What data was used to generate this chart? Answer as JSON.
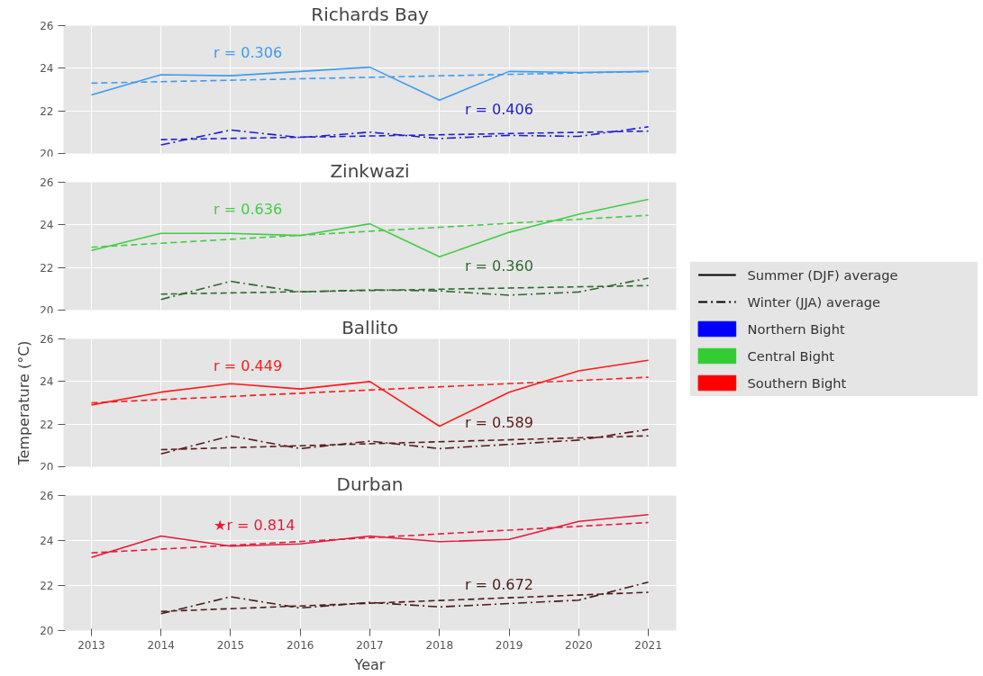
{
  "chart_data": [
    {
      "type": "line",
      "title": "Richards Bay",
      "ylim": [
        20,
        26
      ],
      "yticks": [
        20,
        22,
        24,
        26
      ],
      "xlim": [
        2012.6,
        2021.4
      ],
      "xticks": [
        2013,
        2014,
        2015,
        2016,
        2017,
        2018,
        2019,
        2020,
        2021
      ],
      "tick_labels": "y",
      "grid": true,
      "annotations": [
        "r = 0.306",
        "r = 0.406"
      ],
      "series": [
        {
          "color": "#3f9bf0",
          "line_style": "solid",
          "x": [
            2013,
            2014,
            2015,
            2016,
            2017,
            2018,
            2019,
            2020,
            2021
          ],
          "values": [
            22.75,
            23.7,
            23.65,
            23.85,
            24.05,
            22.5,
            23.85,
            23.8,
            23.85
          ]
        },
        {
          "color": "#3f9bf0",
          "line_style": "dashed",
          "x": [
            2013,
            2021
          ],
          "values": [
            23.3,
            23.85
          ]
        },
        {
          "color": "#2020d0",
          "line_style": "dashdot",
          "x": [
            2014,
            2015,
            2016,
            2017,
            2018,
            2019,
            2020,
            2021
          ],
          "values": [
            20.4,
            21.1,
            20.75,
            21.0,
            20.7,
            20.85,
            20.8,
            21.25
          ]
        },
        {
          "color": "#2020d0",
          "line_style": "dashed",
          "x": [
            2014,
            2021
          ],
          "values": [
            20.65,
            21.05
          ]
        }
      ]
    },
    {
      "type": "line",
      "title": "Zinkwazi",
      "ylim": [
        20,
        26
      ],
      "yticks": [
        20,
        22,
        24,
        26
      ],
      "xlim": [
        2012.6,
        2021.4
      ],
      "xticks": [
        2013,
        2014,
        2015,
        2016,
        2017,
        2018,
        2019,
        2020,
        2021
      ],
      "tick_labels": "y",
      "grid": true,
      "annotations": [
        "r = 0.636",
        "r = 0.360"
      ],
      "series": [
        {
          "color": "#44cc44",
          "line_style": "solid",
          "x": [
            2013,
            2014,
            2015,
            2016,
            2017,
            2018,
            2019,
            2020,
            2021
          ],
          "values": [
            22.8,
            23.6,
            23.6,
            23.5,
            24.05,
            22.5,
            23.65,
            24.5,
            25.2
          ]
        },
        {
          "color": "#44cc44",
          "line_style": "dashed",
          "x": [
            2013,
            2021
          ],
          "values": [
            22.95,
            24.45
          ]
        },
        {
          "color": "#2e6b2e",
          "line_style": "dashdot",
          "x": [
            2014,
            2015,
            2016,
            2017,
            2018,
            2019,
            2020,
            2021
          ],
          "values": [
            20.5,
            21.35,
            20.85,
            20.95,
            20.9,
            20.7,
            20.85,
            21.5
          ]
        },
        {
          "color": "#2e6b2e",
          "line_style": "dashed",
          "x": [
            2014,
            2021
          ],
          "values": [
            20.75,
            21.15
          ]
        }
      ]
    },
    {
      "type": "line",
      "title": "Ballito",
      "ylabel": "Temperature (°C)",
      "ylim": [
        20,
        26
      ],
      "yticks": [
        20,
        22,
        24,
        26
      ],
      "xlim": [
        2012.6,
        2021.4
      ],
      "xticks": [
        2013,
        2014,
        2015,
        2016,
        2017,
        2018,
        2019,
        2020,
        2021
      ],
      "tick_labels": "y",
      "grid": true,
      "annotations": [
        "r = 0.449",
        "r = 0.589"
      ],
      "series": [
        {
          "color": "#ff1a1a",
          "line_style": "solid",
          "x": [
            2013,
            2014,
            2015,
            2016,
            2017,
            2018,
            2019,
            2020,
            2021
          ],
          "values": [
            22.9,
            23.5,
            23.9,
            23.65,
            24.0,
            21.9,
            23.5,
            24.5,
            25.0
          ]
        },
        {
          "color": "#ff1a1a",
          "line_style": "dashed",
          "x": [
            2013,
            2021
          ],
          "values": [
            23.0,
            24.2
          ]
        },
        {
          "color": "#5a1a1a",
          "line_style": "dashdot",
          "x": [
            2014,
            2015,
            2016,
            2017,
            2018,
            2019,
            2020,
            2021
          ],
          "values": [
            20.6,
            21.45,
            20.85,
            21.2,
            20.85,
            21.05,
            21.25,
            21.75
          ]
        },
        {
          "color": "#5a1a1a",
          "line_style": "dashed",
          "x": [
            2014,
            2021
          ],
          "values": [
            20.8,
            21.45
          ]
        }
      ]
    },
    {
      "type": "line",
      "title": "Durban",
      "xlabel": "Year",
      "ylim": [
        20,
        26
      ],
      "yticks": [
        20,
        22,
        24,
        26
      ],
      "xlim": [
        2012.6,
        2021.4
      ],
      "xticks": [
        2013,
        2014,
        2015,
        2016,
        2017,
        2018,
        2019,
        2020,
        2021
      ],
      "grid": true,
      "annotations": [
        "★r = 0.814",
        "r = 0.672"
      ],
      "series": [
        {
          "color": "#e8183c",
          "line_style": "solid",
          "x": [
            2013,
            2014,
            2015,
            2016,
            2017,
            2018,
            2019,
            2020,
            2021
          ],
          "values": [
            23.25,
            24.2,
            23.75,
            23.85,
            24.2,
            23.95,
            24.05,
            24.85,
            25.15
          ]
        },
        {
          "color": "#e8183c",
          "line_style": "dashed",
          "x": [
            2013,
            2021
          ],
          "values": [
            23.45,
            24.8
          ]
        },
        {
          "color": "#4a1a1a",
          "line_style": "dashdot",
          "x": [
            2014,
            2015,
            2016,
            2017,
            2018,
            2019,
            2020,
            2021
          ],
          "values": [
            20.75,
            21.5,
            21.0,
            21.25,
            21.05,
            21.2,
            21.35,
            22.15
          ]
        },
        {
          "color": "#4a1a1a",
          "line_style": "dashed",
          "x": [
            2014,
            2021
          ],
          "values": [
            20.85,
            21.7
          ]
        }
      ]
    },
    {
      "type": "other",
      "legend": "right",
      "series": [
        {
          "name": "Summer (DJF) average",
          "color": "#000000",
          "line_style": "solid"
        },
        {
          "name": "Winter (JJA) average",
          "color": "#000000",
          "line_style": "dashdot"
        },
        {
          "name": "Northern Bight",
          "color": "#0000ff"
        },
        {
          "name": "Central Bight",
          "color": "#33cc33"
        },
        {
          "name": "Southern Bight",
          "color": "#ff0000"
        }
      ]
    }
  ]
}
